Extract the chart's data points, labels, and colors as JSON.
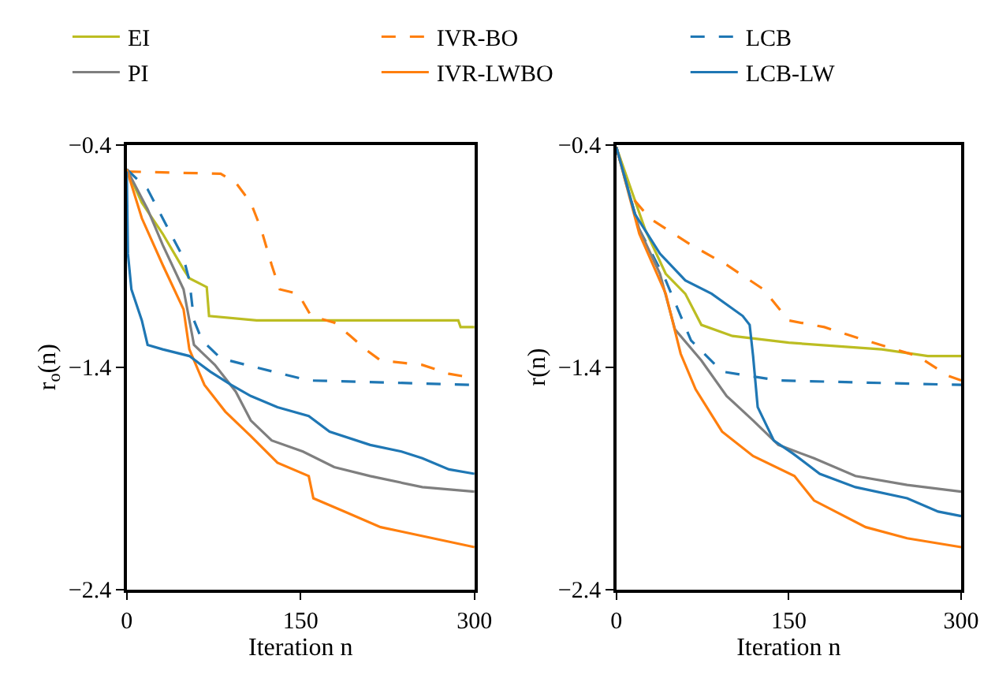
{
  "chart_data": [
    {
      "type": "line",
      "xlabel": "Iteration n",
      "ylabel": "r$_{o}$(n)",
      "xlim": [
        0,
        300
      ],
      "xticks": [
        0,
        150,
        300
      ],
      "ylim": [
        -2.4,
        -0.4
      ],
      "yticks": [
        -2.4,
        -1.4,
        -0.4
      ],
      "legend": "top",
      "line_style": "solid",
      "series": [
        {
          "name": "EI",
          "color": "#bcbd22",
          "x": [
            0,
            13,
            31,
            49,
            54,
            69,
            71,
            112,
            286,
            288,
            300
          ],
          "values": [
            -0.51,
            -0.66,
            -0.8,
            -0.96,
            -1.0,
            -1.04,
            -1.17,
            -1.19,
            -1.19,
            -1.22,
            -1.22
          ]
        },
        {
          "name": "IVR-BO",
          "color": "#ff7f0e",
          "line_style": "dashed",
          "x": [
            0,
            81,
            94,
            107,
            116,
            125,
            132,
            148,
            159,
            179,
            193,
            206,
            219,
            255,
            278,
            300
          ],
          "values": [
            -0.52,
            -0.53,
            -0.57,
            -0.66,
            -0.78,
            -0.94,
            -1.05,
            -1.07,
            -1.17,
            -1.2,
            -1.26,
            -1.32,
            -1.37,
            -1.39,
            -1.43,
            -1.45
          ]
        },
        {
          "name": "LCB",
          "color": "#1f77b4",
          "line_style": "dashed",
          "x": [
            0,
            18,
            36,
            49,
            54,
            58,
            65,
            81,
            103,
            157,
            300
          ],
          "values": [
            -0.51,
            -0.6,
            -0.78,
            -0.91,
            -1.01,
            -1.19,
            -1.28,
            -1.36,
            -1.39,
            -1.46,
            -1.48
          ]
        },
        {
          "name": "PI",
          "color": "#7f7f7f",
          "x": [
            0,
            18,
            31,
            49,
            58,
            76,
            94,
            107,
            125,
            152,
            179,
            210,
            255,
            300
          ],
          "values": [
            -0.51,
            -0.69,
            -0.85,
            -1.05,
            -1.3,
            -1.39,
            -1.51,
            -1.64,
            -1.73,
            -1.78,
            -1.85,
            -1.89,
            -1.94,
            -1.96
          ]
        },
        {
          "name": "IVR-LWBO",
          "color": "#ff7f0e",
          "x": [
            0,
            13,
            31,
            49,
            54,
            67,
            85,
            107,
            130,
            157,
            161,
            188,
            219,
            237,
            300
          ],
          "values": [
            -0.51,
            -0.73,
            -0.94,
            -1.14,
            -1.32,
            -1.48,
            -1.6,
            -1.71,
            -1.83,
            -1.89,
            -1.99,
            -2.05,
            -2.12,
            -2.14,
            -2.21
          ]
        },
        {
          "name": "LCB-LW",
          "color": "#1f77b4",
          "x": [
            0,
            1,
            4,
            13,
            18,
            31,
            54,
            72,
            90,
            107,
            130,
            157,
            175,
            210,
            237,
            255,
            278,
            300
          ],
          "values": [
            -0.52,
            -0.89,
            -1.05,
            -1.19,
            -1.3,
            -1.32,
            -1.35,
            -1.42,
            -1.48,
            -1.53,
            -1.58,
            -1.62,
            -1.69,
            -1.75,
            -1.78,
            -1.81,
            -1.86,
            -1.88
          ]
        }
      ]
    },
    {
      "type": "line",
      "xlabel": "Iteration n",
      "ylabel": "r(n)",
      "xlim": [
        0,
        300
      ],
      "xticks": [
        0,
        150,
        300
      ],
      "ylim": [
        -2.4,
        -0.4
      ],
      "yticks": [
        -2.4,
        -1.4,
        -0.4
      ],
      "legend": "top",
      "line_style": "solid",
      "series": [
        {
          "name": "EI",
          "color": "#bcbd22",
          "x": [
            0,
            25,
            43,
            60,
            74,
            101,
            150,
            231,
            271,
            300
          ],
          "values": [
            -0.41,
            -0.78,
            -0.98,
            -1.07,
            -1.21,
            -1.26,
            -1.29,
            -1.32,
            -1.35,
            -1.35
          ]
        },
        {
          "name": "IVR-BO",
          "color": "#ff7f0e",
          "line_style": "dashed",
          "x": [
            0,
            11,
            29,
            65,
            96,
            128,
            150,
            181,
            217,
            262,
            289,
            300
          ],
          "values": [
            -0.41,
            -0.62,
            -0.73,
            -0.85,
            -0.94,
            -1.05,
            -1.19,
            -1.22,
            -1.28,
            -1.35,
            -1.44,
            -1.46
          ]
        },
        {
          "name": "LCB",
          "color": "#1f77b4",
          "line_style": "dashed",
          "x": [
            0,
            20,
            43,
            65,
            92,
            141,
            300
          ],
          "values": [
            -0.41,
            -0.78,
            -1.01,
            -1.28,
            -1.42,
            -1.46,
            -1.48
          ]
        },
        {
          "name": "PI",
          "color": "#7f7f7f",
          "x": [
            0,
            20,
            38,
            51,
            74,
            96,
            119,
            141,
            172,
            208,
            253,
            300
          ],
          "values": [
            -0.41,
            -0.78,
            -0.98,
            -1.23,
            -1.37,
            -1.53,
            -1.64,
            -1.75,
            -1.81,
            -1.89,
            -1.93,
            -1.96
          ]
        },
        {
          "name": "IVR-LWBO",
          "color": "#ff7f0e",
          "x": [
            0,
            20,
            43,
            56,
            69,
            92,
            119,
            155,
            172,
            217,
            253,
            300
          ],
          "values": [
            -0.41,
            -0.8,
            -1.07,
            -1.34,
            -1.5,
            -1.69,
            -1.8,
            -1.89,
            -2.0,
            -2.12,
            -2.17,
            -2.21
          ]
        },
        {
          "name": "LCB-LW",
          "color": "#1f77b4",
          "x": [
            0,
            16,
            38,
            60,
            83,
            110,
            116,
            119,
            123,
            137,
            154,
            177,
            208,
            253,
            280,
            300
          ],
          "values": [
            -0.41,
            -0.71,
            -0.89,
            -1.01,
            -1.07,
            -1.17,
            -1.21,
            -1.35,
            -1.58,
            -1.73,
            -1.79,
            -1.88,
            -1.94,
            -1.99,
            -2.05,
            -2.07
          ]
        }
      ]
    }
  ]
}
